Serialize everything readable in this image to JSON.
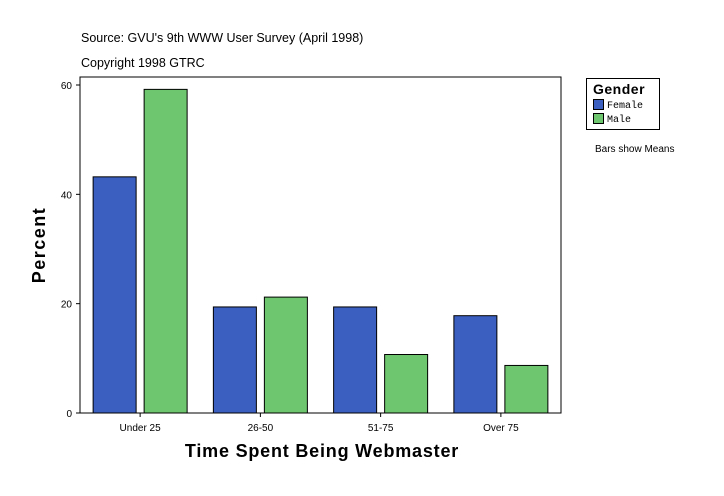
{
  "header": {
    "source": "Source: GVU's 9th WWW User Survey (April 1998)",
    "copyright": "Copyright 1998 GTRC"
  },
  "legend": {
    "title": "Gender",
    "items": [
      {
        "label": "Female",
        "color": "#3a5fc0"
      },
      {
        "label": "Male",
        "color": "#6ec66e"
      }
    ]
  },
  "note": "Bars show Means",
  "chart_data": {
    "type": "bar",
    "title": "",
    "xlabel": "Time Spent Being Webmaster",
    "ylabel": "Percent",
    "categories": [
      "Under 25",
      "26-50",
      "51-75",
      "Over 75"
    ],
    "series": [
      {
        "name": "Female",
        "color": "#3a5fc0",
        "values": [
          43.2,
          19.4,
          19.4,
          17.8
        ]
      },
      {
        "name": "Male",
        "color": "#6ec66e",
        "values": [
          59.2,
          21.2,
          10.7,
          8.7
        ]
      }
    ],
    "ylim": [
      0,
      60
    ],
    "yticks": [
      0,
      20,
      40,
      60
    ],
    "grid": false,
    "legend_position": "top-right"
  }
}
